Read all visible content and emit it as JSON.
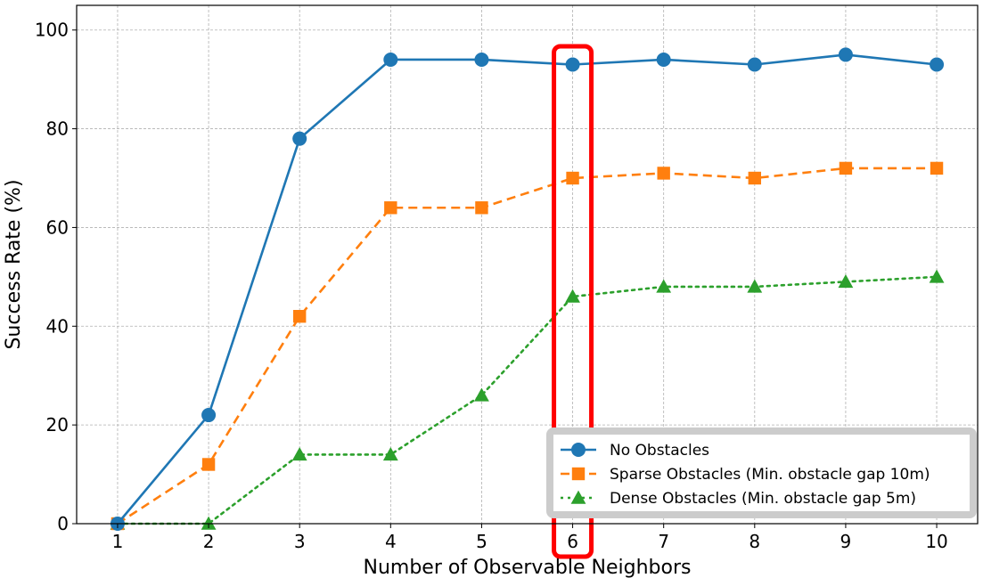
{
  "chart_data": {
    "type": "line",
    "xlabel": "Number of Observable Neighbors",
    "ylabel": "Success Rate (%)",
    "x": [
      1,
      2,
      3,
      4,
      5,
      6,
      7,
      8,
      9,
      10
    ],
    "xlim": [
      0.55,
      10.45
    ],
    "ylim": [
      0,
      105
    ],
    "yticks": [
      0,
      20,
      40,
      60,
      80,
      100
    ],
    "grid": true,
    "legend_position": "lower-right",
    "series": [
      {
        "name": "No Obstacles",
        "values": [
          0,
          22,
          78,
          94,
          94,
          93,
          94,
          93,
          95,
          93
        ],
        "color": "#1f77b4",
        "marker": "circle",
        "linestyle": "solid"
      },
      {
        "name": "Sparse Obstacles (Min. obstacle gap 10m)",
        "values": [
          0,
          12,
          42,
          64,
          64,
          70,
          71,
          70,
          72,
          72
        ],
        "color": "#ff7f0e",
        "marker": "square",
        "linestyle": "dashed"
      },
      {
        "name": "Dense Obstacles (Min. obstacle gap 5m)",
        "values": [
          0,
          0,
          14,
          14,
          26,
          46,
          48,
          48,
          49,
          50
        ],
        "color": "#2ca02c",
        "marker": "triangle",
        "linestyle": "dotted"
      }
    ],
    "highlight": {
      "x": 6,
      "color": "#ff0000"
    }
  }
}
